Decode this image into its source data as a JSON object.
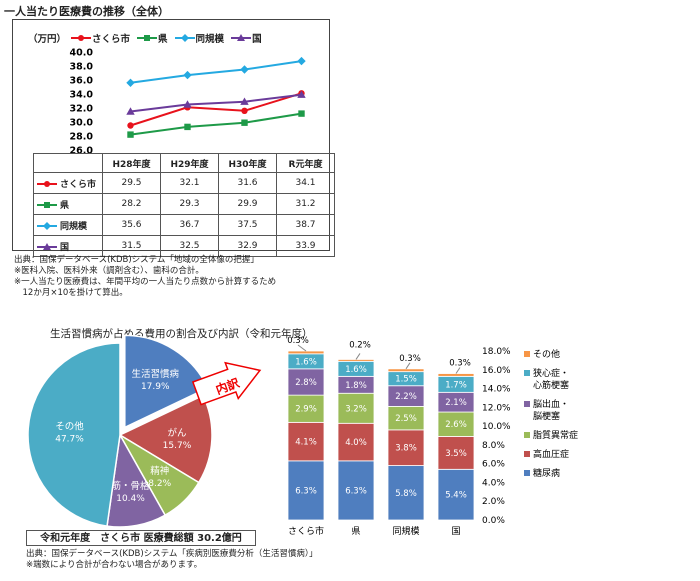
{
  "line_section": {
    "title": "一人当たり医療費の推移（全体）",
    "unit": "（万円）",
    "notes": [
      "出典：国保データベース(KDB)システム「地域の全体像の把握」",
      "※医科入院、医科外来（調剤含む）、歯科の合計。",
      "※一人当たり医療費は、年間平均の一人当たり点数から計算するため",
      "　12か月×10を掛けて算出。"
    ]
  },
  "pie_section": {
    "title": "生活習慣病が占める費用の割合及び内訳（令和元年度）",
    "caption": "令和元年度　さくら市 医療費総額 30.2億円",
    "callout": "内訳",
    "notes": [
      "出典：国保データベース(KDB)システム「疾病別医療費分析（生活習慣病）」",
      "※端数により合計が合わない場合があります。"
    ]
  },
  "chart_data": [
    {
      "type": "line",
      "categories": [
        "H28年度",
        "H29年度",
        "H30年度",
        "R元年度"
      ],
      "ylabel": "（万円）",
      "ylim": [
        26.0,
        40.0
      ],
      "yticks": [
        "40.0",
        "38.0",
        "36.0",
        "34.0",
        "32.0",
        "30.0",
        "28.0",
        "26.0"
      ],
      "legend_position": "top",
      "series": [
        {
          "name": "さくら市",
          "color": "#e8121c",
          "marker": "circle",
          "values": [
            29.5,
            32.1,
            31.6,
            34.1
          ],
          "labels": [
            "29.5",
            "32.1",
            "31.6",
            "34.1"
          ]
        },
        {
          "name": "県",
          "color": "#1e9a48",
          "marker": "square",
          "values": [
            28.2,
            29.3,
            29.9,
            31.2
          ],
          "labels": [
            "28.2",
            "29.3",
            "29.9",
            "31.2"
          ]
        },
        {
          "name": "同規模",
          "color": "#24a9e1",
          "marker": "diamond",
          "values": [
            35.6,
            36.7,
            37.5,
            38.7
          ],
          "labels": [
            "35.6",
            "36.7",
            "37.5",
            "38.7"
          ]
        },
        {
          "name": "国",
          "color": "#6a3b9a",
          "marker": "triangle",
          "values": [
            31.5,
            32.5,
            32.9,
            33.9
          ],
          "labels": [
            "31.5",
            "32.5",
            "32.9",
            "33.9"
          ]
        }
      ]
    },
    {
      "type": "pie",
      "slices": [
        {
          "name": "生活習慣病",
          "pct": "17.9%",
          "value": 17.9,
          "color": "#4f7ebf"
        },
        {
          "name": "がん",
          "pct": "15.7%",
          "value": 15.7,
          "color": "#c0504d"
        },
        {
          "name": "精神",
          "pct": "8.2%",
          "value": 8.2,
          "color": "#9bbb59"
        },
        {
          "name": "筋・骨格",
          "pct": "10.4%",
          "value": 10.4,
          "color": "#8064a2"
        },
        {
          "name": "その他",
          "pct": "47.7%",
          "value": 47.7,
          "color": "#4bacc6"
        }
      ]
    },
    {
      "type": "bar",
      "stacked": true,
      "categories": [
        "さくら市",
        "県",
        "同規模",
        "国"
      ],
      "ylim": [
        0,
        18
      ],
      "yticks": [
        "18.0%",
        "16.0%",
        "14.0%",
        "12.0%",
        "10.0%",
        "8.0%",
        "6.0%",
        "4.0%",
        "2.0%",
        "0.0%"
      ],
      "legend_position": "right",
      "series": [
        {
          "name": "糖尿病",
          "color": "#4f7ebf",
          "values": [
            6.3,
            6.3,
            5.8,
            5.4
          ],
          "labels": [
            "6.3%",
            "6.3%",
            "5.8%",
            "5.4%"
          ]
        },
        {
          "name": "高血圧症",
          "color": "#c0504d",
          "values": [
            4.1,
            4.0,
            3.8,
            3.5
          ],
          "labels": [
            "4.1%",
            "4.0%",
            "3.8%",
            "3.5%"
          ]
        },
        {
          "name": "脂質異常症",
          "color": "#9bbb59",
          "values": [
            2.9,
            3.2,
            2.5,
            2.6
          ],
          "labels": [
            "2.9%",
            "3.2%",
            "2.5%",
            "2.6%"
          ]
        },
        {
          "name": "脳出血・脳梗塞",
          "legend_lines": [
            "脳出血・",
            "脳梗塞"
          ],
          "color": "#8064a2",
          "values": [
            2.8,
            1.8,
            2.2,
            2.1
          ],
          "labels": [
            "2.8%",
            "1.8%",
            "2.2%",
            "2.1%"
          ]
        },
        {
          "name": "狭心症・心筋梗塞",
          "legend_lines": [
            "狭心症・",
            "心筋梗塞"
          ],
          "color": "#4bacc6",
          "values": [
            1.6,
            1.6,
            1.5,
            1.7
          ],
          "labels": [
            "1.6%",
            "1.6%",
            "1.5%",
            "1.7%"
          ]
        },
        {
          "name": "その他",
          "color": "#f79646",
          "values": [
            0.3,
            0.2,
            0.3,
            0.3
          ],
          "labels": [
            "0.3%",
            "0.2%",
            "0.3%",
            "0.3%"
          ]
        }
      ]
    }
  ]
}
